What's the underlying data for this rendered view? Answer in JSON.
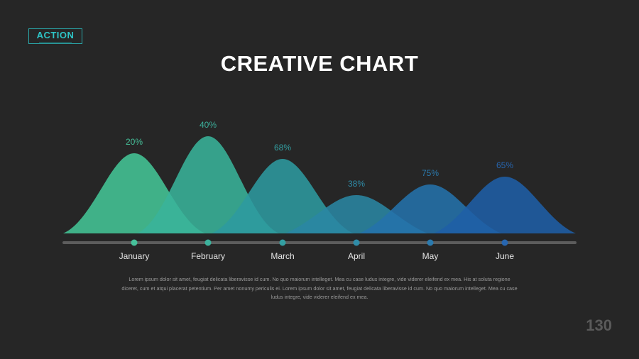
{
  "logo": {
    "text": "ACTION"
  },
  "title": "CREATIVE CHART",
  "chart_data": {
    "type": "area",
    "categories": [
      "January",
      "February",
      "March",
      "April",
      "May",
      "June"
    ],
    "values": [
      20,
      40,
      68,
      38,
      75,
      65
    ],
    "value_labels": [
      "20%",
      "40%",
      "68%",
      "38%",
      "75%",
      "65%"
    ],
    "colors": [
      "#44c596",
      "#39b39a",
      "#2e9a9f",
      "#2a86a3",
      "#2472ab",
      "#1f5ea6"
    ],
    "label_colors": [
      "#46c19a",
      "#3cb19c",
      "#339fa2",
      "#2f8ca8",
      "#2b7aae",
      "#2766b0"
    ],
    "grid": false
  },
  "body_text": "Lorem ipsum dolor sit amet, feugiat delicata liberavisse id cum. No quo maiorum intelleget. Mea cu case ludus integre, vide viderer eleifend ex mea. His at soluta regione diceret, cum et atqui placerat petentium. Per amet nonumy periculis ei. Lorem ipsum dolor sit amet, feugiat delicata liberavisse id cum. No quo maiorum intelleget. Mea cu case ludus integre, vide viderer eleifend ex mea.",
  "page_number": "130"
}
